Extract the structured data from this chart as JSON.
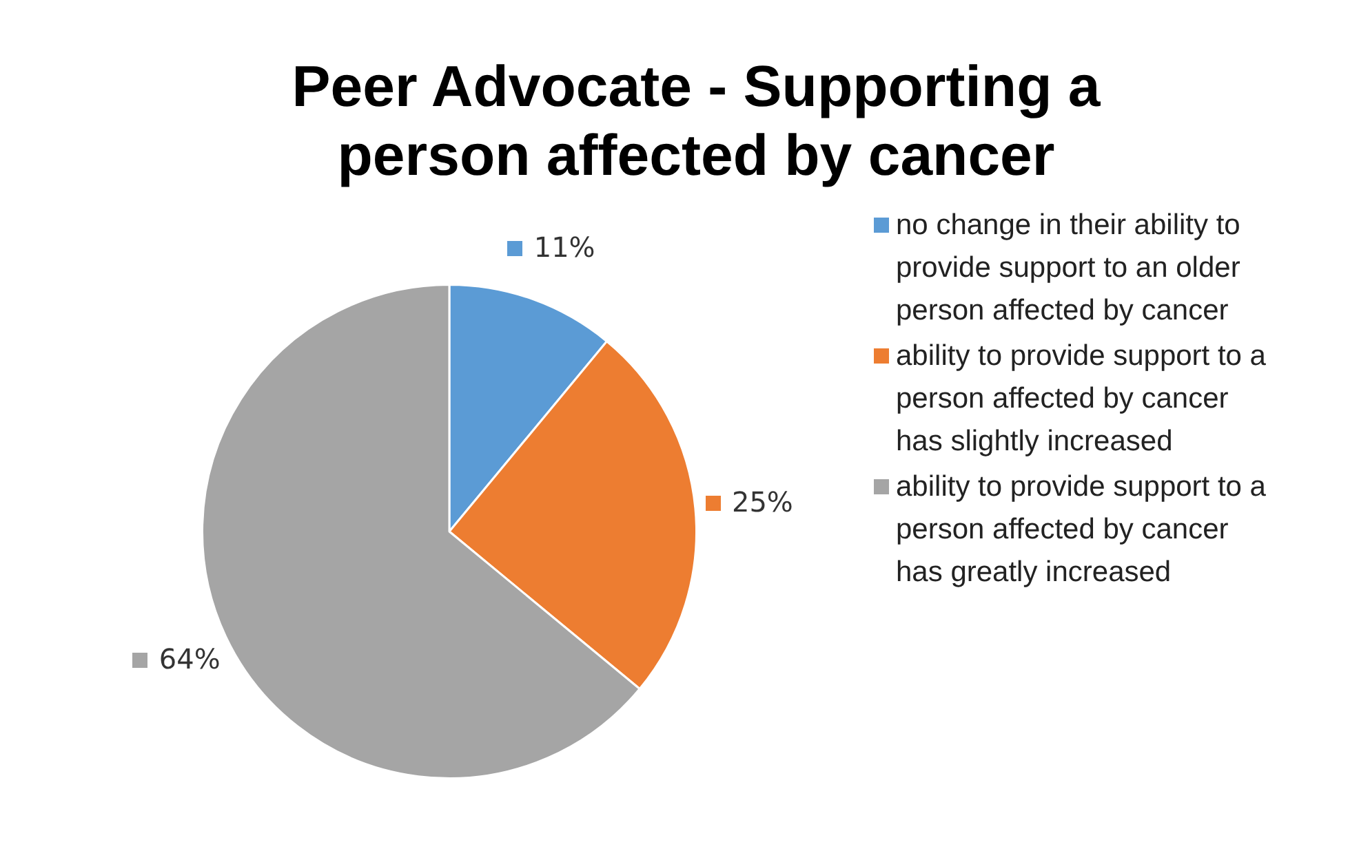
{
  "chart_data": {
    "type": "pie",
    "title": "Peer Advocate - Supporting a person affected by cancer",
    "categories": [
      "no change in their ability to provide support to an older person affected by cancer",
      "ability to provide support to a person affected by cancer has slightly increased",
      "ability to provide support to a person affected by cancer has greatly increased"
    ],
    "values": [
      11,
      25,
      64
    ],
    "colors": [
      "#5b9bd5",
      "#ed7d31",
      "#a5a5a5"
    ],
    "value_labels": [
      "11%",
      "25%",
      "64%"
    ],
    "legend": "right"
  }
}
